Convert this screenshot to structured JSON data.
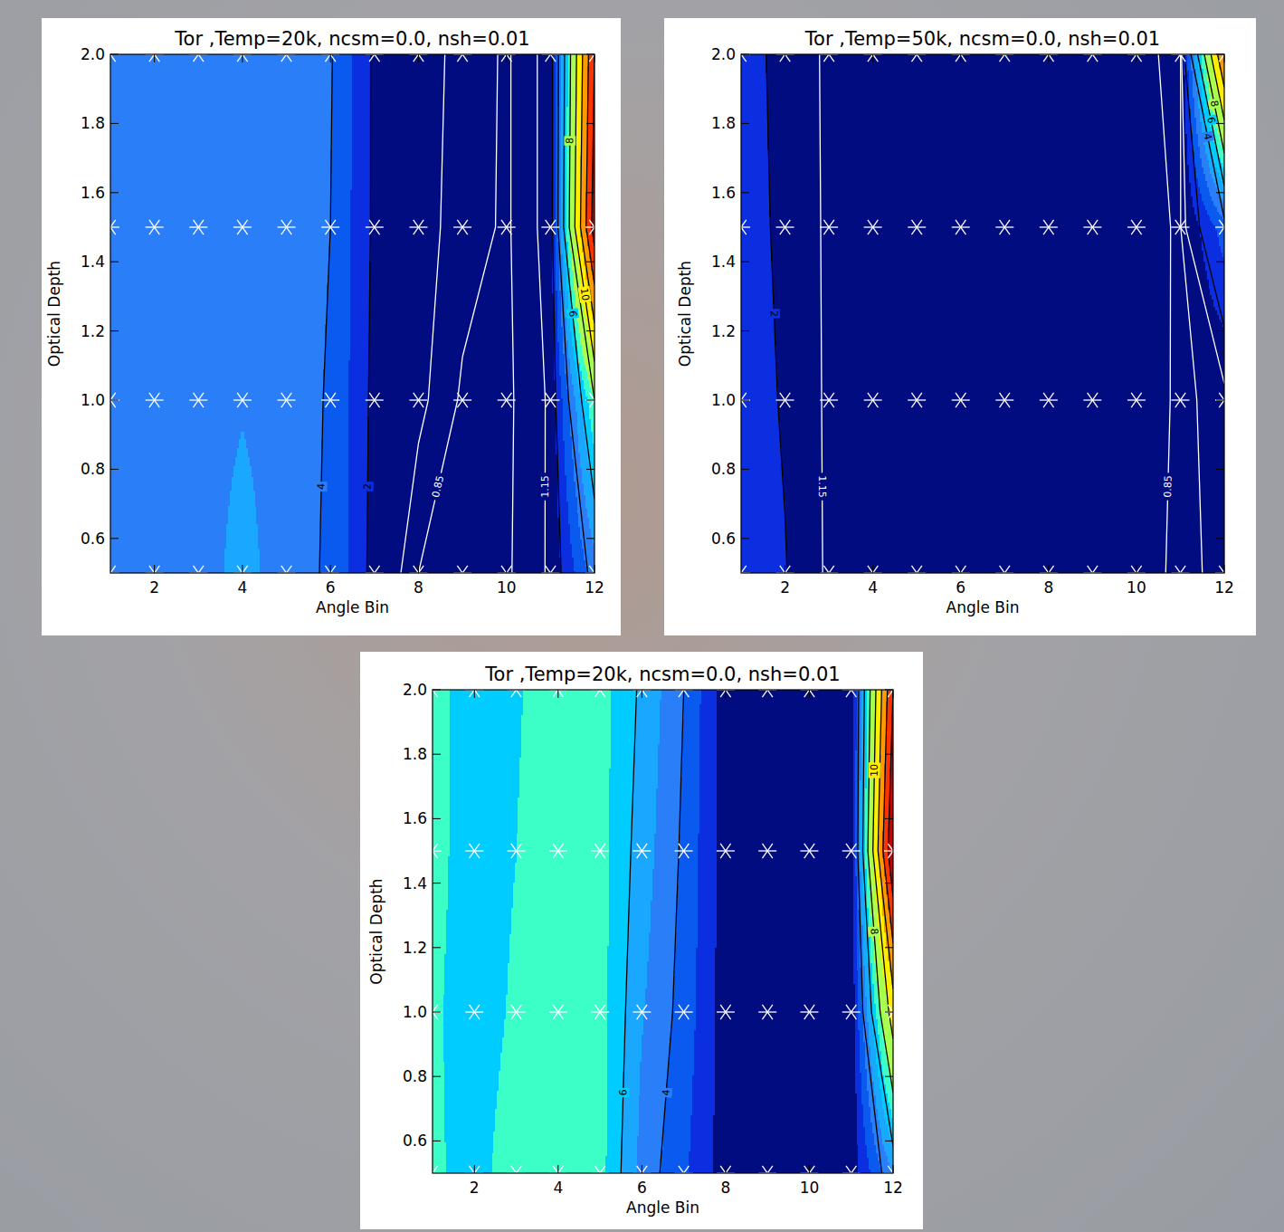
{
  "chart_data": [
    {
      "type": "contour",
      "title": "Tor ,Temp=20k, ncsm=0.0, nsh=0.01",
      "x_label": "Angle Bin",
      "y_label": "Optical Depth",
      "x": [
        1,
        2,
        3,
        4,
        5,
        6,
        7,
        8,
        9,
        10,
        11,
        12
      ],
      "y": [
        0.5,
        1.0,
        1.5,
        2.0
      ],
      "z": [
        [
          4.5,
          4.5,
          4.3,
          5.5,
          4.3,
          3.9,
          1.6,
          0.85,
          0.8,
          0.8,
          1.2,
          4.5
        ],
        [
          4.5,
          4.5,
          4.5,
          4.9,
          4.5,
          3.9,
          1.7,
          1.25,
          0.8,
          0.78,
          1.2,
          8
        ],
        [
          4.5,
          4.5,
          4.5,
          4.5,
          4.5,
          4.0,
          1.8,
          1.3,
          1.0,
          0.8,
          1.3,
          17
        ],
        [
          4.5,
          4.5,
          4.5,
          4.5,
          4.5,
          4.1,
          1.8,
          1.3,
          1.05,
          0.8,
          1.3,
          16
        ]
      ],
      "xlim": [
        1,
        12
      ],
      "ylim": [
        0.5,
        2.0
      ],
      "xticks": [
        2,
        4,
        6,
        8,
        10,
        12
      ],
      "yticks": [
        0.6,
        0.8,
        {
          "value": 1.0,
          "label": "1.0"
        },
        1.2,
        1.4,
        1.6,
        1.8,
        {
          "value": 2.0,
          "label": "2.0"
        }
      ],
      "levels": [
        0,
        2,
        3,
        4,
        5,
        6,
        7,
        8,
        10,
        12,
        14,
        16,
        20
      ],
      "colors": [
        "#000c80",
        "#0a2ee0",
        "#0a5af0",
        "#2a7ef8",
        "#1aa8ff",
        "#00ccff",
        "#3cffc8",
        "#a8ff50",
        "#ffee00",
        "#ff9900",
        "#ff3300",
        "#cc0000"
      ],
      "contours": [
        {
          "value": 0.85,
          "color": "#ffffff"
        },
        {
          "value": 1.15,
          "color": "#ffffff"
        },
        {
          "value": 2,
          "color": "#000000"
        },
        {
          "value": 4,
          "color": "#000000"
        },
        {
          "value": 6,
          "color": "#000000"
        },
        {
          "value": 8,
          "color": "#000000"
        },
        {
          "value": 10,
          "color": "#000000"
        },
        {
          "value": 12,
          "color": "#000000"
        },
        {
          "value": 14,
          "color": "#000000"
        },
        {
          "value": 16,
          "color": "#000000"
        }
      ],
      "marker": "asterisk"
    },
    {
      "type": "contour",
      "title": "Tor ,Temp=50k, ncsm=0.0, nsh=0.01",
      "x_label": "Angle Bin",
      "y_label": "Optical Depth",
      "x": [
        1,
        2,
        3,
        4,
        5,
        6,
        7,
        8,
        9,
        10,
        11,
        12
      ],
      "y": [
        0.5,
        1.0,
        1.5,
        2.0
      ],
      "z": [
        [
          2.6,
          2.05,
          1.0,
          1.0,
          1.0,
          1.0,
          1.0,
          1.0,
          1.0,
          0.95,
          0.8,
          0.9
        ],
        [
          2.5,
          1.9,
          1.0,
          1.0,
          1.0,
          1.0,
          1.0,
          1.0,
          1.0,
          0.95,
          0.82,
          0.9
        ],
        [
          2.4,
          1.8,
          1.0,
          1.0,
          1.0,
          1.0,
          1.0,
          1.0,
          1.0,
          0.92,
          0.83,
          3.5
        ],
        [
          2.4,
          1.7,
          1.0,
          1.0,
          1.0,
          1.0,
          1.0,
          1.0,
          1.0,
          0.9,
          0.8,
          14
        ]
      ],
      "xlim": [
        1,
        12
      ],
      "ylim": [
        0.5,
        2.0
      ],
      "xticks": [
        2,
        4,
        6,
        8,
        10,
        12
      ],
      "yticks": [
        0.6,
        0.8,
        {
          "value": 1.0,
          "label": "1.0"
        },
        1.2,
        1.4,
        1.6,
        1.8,
        {
          "value": 2.0,
          "label": "2.0"
        }
      ],
      "levels": [
        0,
        2,
        3,
        4,
        5,
        6,
        7,
        8,
        10,
        12,
        14,
        16,
        20
      ],
      "colors": [
        "#000c80",
        "#0a2ee0",
        "#0a5af0",
        "#2a7ef8",
        "#1aa8ff",
        "#00ccff",
        "#3cffc8",
        "#a8ff50",
        "#ffee00",
        "#ff9900",
        "#ff3300",
        "#cc0000"
      ],
      "contours": [
        {
          "value": 0.85,
          "color": "#ffffff"
        },
        {
          "value": 1.15,
          "color": "#ffffff"
        },
        {
          "value": 2,
          "color": "#000000"
        },
        {
          "value": 4,
          "color": "#000000"
        },
        {
          "value": 6,
          "color": "#000000"
        },
        {
          "value": 8,
          "color": "#000000"
        },
        {
          "value": 10,
          "color": "#000000"
        },
        {
          "value": 12,
          "color": "#000000"
        }
      ],
      "marker": "asterisk"
    },
    {
      "type": "contour",
      "title": "Tor ,Temp=20k, ncsm=0.0, nsh=0.01",
      "x_label": "Angle Bin",
      "y_label": "Optical Depth",
      "x": [
        1,
        2,
        3,
        4,
        5,
        6,
        7,
        8,
        9,
        10,
        11,
        12
      ],
      "y": [
        0.5,
        1.0,
        1.5,
        2.0
      ],
      "z": [
        [
          7.1,
          6.8,
          7.3,
          7.5,
          7.4,
          4.6,
          3.2,
          1.5,
          1.2,
          1.2,
          1.3,
          5
        ],
        [
          7.1,
          6.7,
          7.1,
          7.5,
          7.4,
          5.1,
          3.6,
          1.5,
          1.2,
          1.2,
          1.3,
          11
        ],
        [
          7.2,
          6.7,
          7.0,
          7.5,
          7.4,
          5.5,
          3.8,
          1.5,
          1.2,
          1.2,
          1.4,
          18
        ],
        [
          7.2,
          6.7,
          6.9,
          7.5,
          7.4,
          5.8,
          4.0,
          1.5,
          1.2,
          1.2,
          1.4,
          16
        ]
      ],
      "xlim": [
        1,
        12
      ],
      "ylim": [
        0.5,
        2.0
      ],
      "xticks": [
        2,
        4,
        6,
        8,
        10,
        12
      ],
      "yticks": [
        0.6,
        0.8,
        {
          "value": 1.0,
          "label": "1.0"
        },
        1.2,
        1.4,
        1.6,
        1.8,
        {
          "value": 2.0,
          "label": "2.0"
        }
      ],
      "levels": [
        0,
        2,
        3,
        4,
        5,
        6,
        7,
        8,
        10,
        12,
        14,
        16,
        20
      ],
      "colors": [
        "#000c80",
        "#0a2ee0",
        "#0a5af0",
        "#2a7ef8",
        "#1aa8ff",
        "#00ccff",
        "#3cffc8",
        "#a8ff50",
        "#ffee00",
        "#ff9900",
        "#ff3300",
        "#cc0000"
      ],
      "contours": [
        {
          "value": 4,
          "color": "#000000"
        },
        {
          "value": 6,
          "color": "#000000"
        },
        {
          "value": 8,
          "color": "#000000"
        },
        {
          "value": 10,
          "color": "#000000"
        },
        {
          "value": 12,
          "color": "#000000"
        },
        {
          "value": 14,
          "color": "#000000"
        },
        {
          "value": 16,
          "color": "#000000"
        }
      ],
      "marker": "asterisk"
    }
  ]
}
